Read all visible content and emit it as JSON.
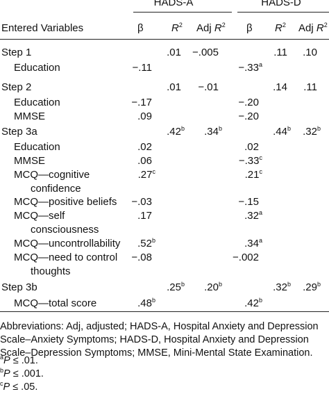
{
  "groups": {
    "a": "HADS-A",
    "d": "HADS-D"
  },
  "columns": {
    "variables": "Entered Variables",
    "beta": "β",
    "r2": "R",
    "r2_exp": "2",
    "adj": "Adj ",
    "adj_r": "R",
    "adj_exp": "2"
  },
  "rows": [
    {
      "label": "Step 1",
      "step": true,
      "r2a": ".01",
      "adja": "−.005",
      "r2d": ".11",
      "adjd": ".10"
    },
    {
      "label": "Education",
      "betaa": "−.11",
      "betad": "−.33",
      "betad_sup": "a"
    },
    {
      "label": "Step 2",
      "step": true,
      "r2a": ".01",
      "adja": "−.01",
      "r2d": ".14",
      "adjd": ".11"
    },
    {
      "label": "Education",
      "betaa": "−.17",
      "betad": "−.20"
    },
    {
      "label": "MMSE",
      "betaa": ".09",
      "betad": "−.20"
    },
    {
      "label": "Step 3a",
      "step": true,
      "r2a": ".42",
      "r2a_sup": "b",
      "adja": ".34",
      "adja_sup": "b",
      "r2d": ".44",
      "r2d_sup": "b",
      "adjd": ".32",
      "adjd_sup": "b"
    },
    {
      "label": "Education",
      "betaa": ".02",
      "betad": ".02"
    },
    {
      "label": "MMSE",
      "betaa": ".06",
      "betad": "−.33",
      "betad_sup": "c"
    },
    {
      "label": "MCQ—cognitive",
      "label2": "confidence",
      "betaa": ".27",
      "betaa_sup": "c",
      "betad": ".21",
      "betad_sup": "c"
    },
    {
      "label": "MCQ—positive beliefs",
      "betaa": "−.03",
      "betad": "−.15"
    },
    {
      "label": "MCQ—self",
      "label2": "consciousness",
      "betaa": ".17",
      "betad": ".32",
      "betad_sup": "a"
    },
    {
      "label": "MCQ—uncontrollability",
      "betaa": ".52",
      "betaa_sup": "b",
      "betad": ".34",
      "betad_sup": "a"
    },
    {
      "label": "MCQ—need to control",
      "label2": "thoughts",
      "betaa": "−.08",
      "betad": "−.002"
    },
    {
      "label": "Step 3b",
      "step": true,
      "r2a": ".25",
      "r2a_sup": "b",
      "adja": ".20",
      "adja_sup": "b",
      "r2d": ".32",
      "r2d_sup": "b",
      "adjd": ".29",
      "adjd_sup": "b"
    },
    {
      "label": "MCQ—total score",
      "betaa": ".48",
      "betaa_sup": "b",
      "betad": ".42",
      "betad_sup": "b"
    }
  ],
  "footnotes": {
    "abbreviations": "Abbreviations: Adj, adjusted; HADS-A, Hospital Anxiety and Depression Scale–Anxiety Symptoms; HADS-D, Hospital Anxiety and Depression Scale–Depression Symptoms; MMSE, Mini-Mental State Examination.",
    "notes": [
      {
        "mark": "a",
        "p": "P",
        "text": " ≤ .01."
      },
      {
        "mark": "b",
        "p": "P",
        "text": " ≤ .001."
      },
      {
        "mark": "c",
        "p": "P",
        "text": " ≤ .05."
      }
    ]
  }
}
